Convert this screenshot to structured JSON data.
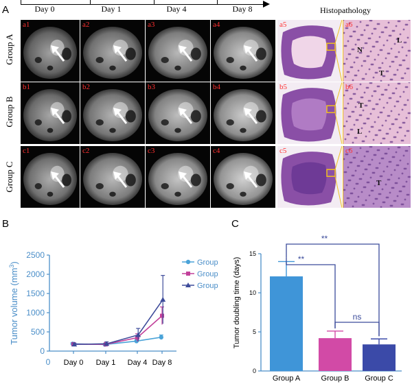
{
  "panel_letters": {
    "a": "A",
    "b": "B",
    "c": "C"
  },
  "timeline": {
    "days": [
      "Day 0",
      "Day 1",
      "Day 4",
      "Day 8"
    ]
  },
  "histopathology_title": "Histopathology",
  "groups": [
    {
      "label": "Group A",
      "mri": [
        "a1",
        "a2",
        "a3",
        "a4"
      ],
      "histo": "a5",
      "micro": "a6",
      "marks": [
        "N",
        "L",
        "T"
      ]
    },
    {
      "label": "Group B",
      "mri": [
        "b1",
        "b2",
        "b3",
        "b4"
      ],
      "histo": "b5",
      "micro": "b6",
      "marks": [
        "T",
        "L"
      ]
    },
    {
      "label": "Group C",
      "mri": [
        "c1",
        "c2",
        "c3",
        "c4"
      ],
      "histo": "c5",
      "micro": "c6",
      "marks": [
        "T"
      ]
    }
  ],
  "chart_data": [
    {
      "type": "line",
      "ylabel_prefix": "Tumor volume (mm",
      "ylabel_sup": "3",
      "ylabel_suffix": ")",
      "xlabel": "",
      "categories": [
        "Day 0",
        "Day 1",
        "Day 4",
        "Day 8"
      ],
      "x_origin_label": "0",
      "ylim": [
        0,
        2500
      ],
      "yticks": [
        0,
        500,
        1000,
        1500,
        2000,
        2500
      ],
      "legend_position": "right",
      "series": [
        {
          "name": "Group A",
          "color": "#4aa3d8",
          "marker": "circle",
          "values": [
            190,
            170,
            260,
            360
          ],
          "err": [
            30,
            20,
            40,
            60
          ]
        },
        {
          "name": "Group B",
          "color": "#c2409a",
          "marker": "square",
          "values": [
            180,
            175,
            350,
            920
          ],
          "err": [
            35,
            30,
            100,
            230
          ]
        },
        {
          "name": "Group C",
          "color": "#3d4b9a",
          "marker": "triangle",
          "values": [
            175,
            190,
            420,
            1340
          ],
          "err": [
            35,
            50,
            170,
            630
          ]
        }
      ]
    },
    {
      "type": "bar",
      "ylabel": "Tumor doubling time (days)",
      "categories": [
        "Group A",
        "Group B",
        "Group C"
      ],
      "values": [
        12.1,
        4.2,
        3.4
      ],
      "err": [
        1.9,
        0.9,
        0.7
      ],
      "colors": [
        "#3f95d8",
        "#d24aa6",
        "#3b4aa8"
      ],
      "ylim": [
        0,
        15
      ],
      "yticks": [
        0,
        5,
        10,
        15
      ],
      "significance": [
        {
          "from": "Group A",
          "to": "Group C",
          "label": "**"
        },
        {
          "from": "Group A",
          "to": "Group B",
          "label": "**"
        },
        {
          "from": "Group B",
          "to": "Group C",
          "label": "ns"
        }
      ]
    }
  ]
}
